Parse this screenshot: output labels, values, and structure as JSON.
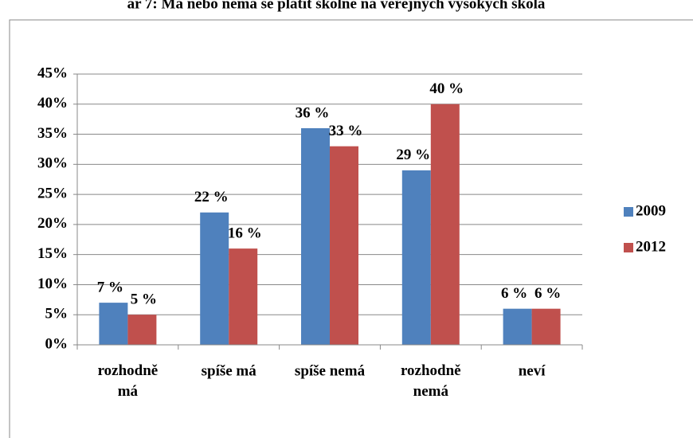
{
  "chart_data": {
    "type": "bar",
    "title": "ar 7: Má nebo nemá se platit školné na veřejných vysokých školá",
    "categories": [
      "rozhodně má",
      "spíše má",
      "spíše nemá",
      "rozhodně nemá",
      "neví"
    ],
    "series": [
      {
        "name": "2009",
        "color": "#4f81bd",
        "values": [
          7,
          22,
          36,
          29,
          6
        ],
        "value_labels": [
          "7 %",
          "22 %",
          "36 %",
          "29 %",
          "6 %"
        ]
      },
      {
        "name": "2012",
        "color": "#c0504d",
        "values": [
          5,
          16,
          33,
          40,
          6
        ],
        "value_labels": [
          "5 %",
          "16 %",
          "33 %",
          "40 %",
          "6 %"
        ]
      }
    ],
    "ylim": [
      0,
      45
    ],
    "yticks": [
      {
        "value": 0,
        "label": "0%"
      },
      {
        "value": 5,
        "label": "5%"
      },
      {
        "value": 10,
        "label": "10%"
      },
      {
        "value": 15,
        "label": "15%"
      },
      {
        "value": 20,
        "label": "20%"
      },
      {
        "value": 25,
        "label": "25%"
      },
      {
        "value": 30,
        "label": "30%"
      },
      {
        "value": 35,
        "label": "35%"
      },
      {
        "value": 40,
        "label": "40%"
      },
      {
        "value": 45,
        "label": "45%"
      }
    ],
    "grid": true,
    "legend": "right"
  }
}
